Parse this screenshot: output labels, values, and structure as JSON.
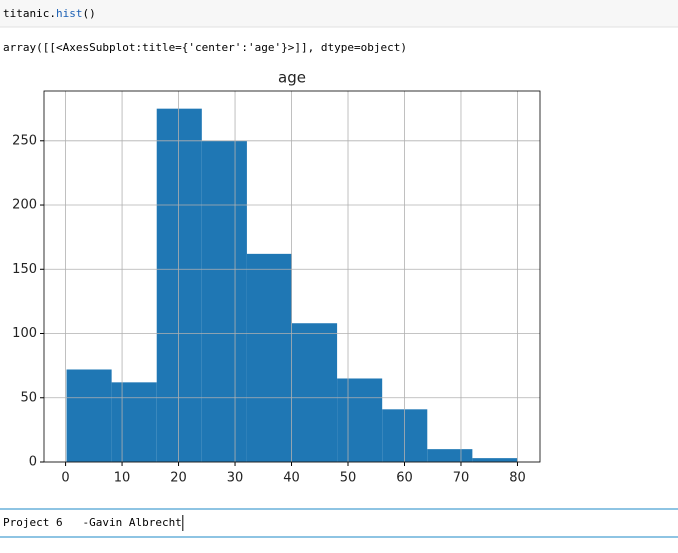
{
  "code_cell": {
    "parts": [
      "titanic.",
      "hist",
      "()"
    ]
  },
  "output_text": "array([[<AxesSubplot:title={'center':'age'}>]], dtype=object)",
  "chart_data": {
    "type": "histogram",
    "title": "age",
    "bins": [
      0.17,
      8.153,
      16.136,
      24.119,
      32.102,
      40.085,
      48.068,
      56.051,
      64.034,
      72.017,
      80
    ],
    "values": [
      72,
      62,
      275,
      250,
      162,
      108,
      65,
      41,
      10,
      3
    ],
    "color": "#1f77b4",
    "xlim": [
      -3.82,
      83.99
    ],
    "xticks": [
      0,
      10,
      20,
      30,
      40,
      50,
      60,
      70,
      80
    ],
    "ylim": [
      0,
      288.75
    ],
    "yticks": [
      0,
      50,
      100,
      150,
      200,
      250
    ],
    "grid": true
  },
  "markdown_cell": {
    "text": "Project 6   -Gavin Albrecht"
  }
}
